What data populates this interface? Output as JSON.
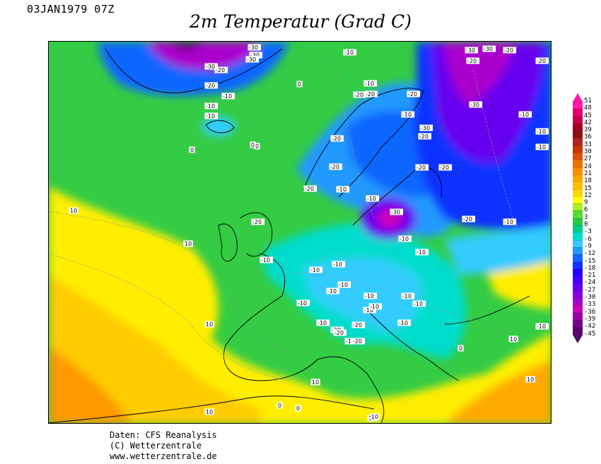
{
  "header": {
    "date_time": "03JAN1979 07Z",
    "title": "2m Temperatur (Grad C)"
  },
  "credits": {
    "line1": "Daten: CFS Reanalysis",
    "line2": "(C) Wetterzentrale",
    "line3": "www.wetterzentrale.de"
  },
  "colorbar": {
    "levels": [
      "51",
      "48",
      "45",
      "42",
      "39",
      "36",
      "33",
      "30",
      "27",
      "24",
      "21",
      "18",
      "15",
      "12",
      "9",
      "6",
      "3",
      "0",
      "-3",
      "-6",
      "-9",
      "-12",
      "-15",
      "-18",
      "-21",
      "-24",
      "-27",
      "-30",
      "-33",
      "-36",
      "-39",
      "-42",
      "-45"
    ],
    "colors": [
      "#ff1aa9",
      "#e8006a",
      "#c8004a",
      "#a80020",
      "#8c1010",
      "#b22222",
      "#cc3300",
      "#e05000",
      "#f07000",
      "#ff8c00",
      "#ffa500",
      "#ffbf00",
      "#ffd700",
      "#ffff00",
      "#aaee22",
      "#55dd33",
      "#22cc44",
      "#00cc88",
      "#00ddcc",
      "#33ccff",
      "#2299ff",
      "#1166ff",
      "#1133ff",
      "#2200ff",
      "#4400ff",
      "#6600ee",
      "#8800dd",
      "#aa00cc",
      "#cc00bb",
      "#9a00aa",
      "#7a0090",
      "#5a0070"
    ],
    "cap_top_color": "#ff1aa9",
    "cap_bottom_color": "#4a0a5e"
  },
  "map_labels": [
    {
      "text": "-30"
    },
    {
      "text": "-30"
    },
    {
      "text": "-30"
    },
    {
      "text": "-30"
    },
    {
      "text": "-20"
    },
    {
      "text": "-20"
    },
    {
      "text": "-10"
    },
    {
      "text": "-10"
    },
    {
      "text": "-10"
    },
    {
      "text": "-10"
    },
    {
      "text": "0"
    },
    {
      "text": "0"
    },
    {
      "text": "0"
    },
    {
      "text": "-10"
    },
    {
      "text": "-20"
    },
    {
      "text": "-20"
    },
    {
      "text": "-20"
    },
    {
      "text": "-10"
    },
    {
      "text": "-30"
    },
    {
      "text": "-20"
    },
    {
      "text": "-20"
    },
    {
      "text": "-30"
    },
    {
      "text": "-20"
    },
    {
      "text": "-30"
    },
    {
      "text": "-20"
    },
    {
      "text": "-20"
    },
    {
      "text": "-10"
    },
    {
      "text": "-30"
    },
    {
      "text": "-10"
    },
    {
      "text": "-10"
    },
    {
      "text": "-20"
    },
    {
      "text": "-20"
    },
    {
      "text": "-20"
    },
    {
      "text": "-10"
    },
    {
      "text": "-10"
    },
    {
      "text": "-20"
    },
    {
      "text": "-30"
    },
    {
      "text": "-20"
    },
    {
      "text": "-10"
    },
    {
      "text": "-10"
    },
    {
      "text": "-10"
    },
    {
      "text": "-10"
    },
    {
      "text": "-10"
    },
    {
      "text": "-10"
    },
    {
      "text": "-10"
    },
    {
      "text": "-10"
    },
    {
      "text": "-10"
    },
    {
      "text": "-10"
    },
    {
      "text": "-10"
    },
    {
      "text": "-10"
    },
    {
      "text": "-20"
    },
    {
      "text": "-10"
    },
    {
      "text": "-20"
    },
    {
      "text": "-10"
    },
    {
      "text": "-20"
    },
    {
      "text": "-10"
    },
    {
      "text": "-10"
    },
    {
      "text": "-20"
    },
    {
      "text": "-20"
    },
    {
      "text": "0"
    },
    {
      "text": "10"
    },
    {
      "text": "10"
    },
    {
      "text": "10"
    },
    {
      "text": "10"
    },
    {
      "text": "10"
    },
    {
      "text": "0"
    },
    {
      "text": "0"
    },
    {
      "text": "10"
    },
    {
      "text": "10"
    },
    {
      "text": "0"
    },
    {
      "text": "10"
    },
    {
      "text": "10"
    },
    {
      "text": "-10"
    },
    {
      "text": "-10"
    }
  ]
}
